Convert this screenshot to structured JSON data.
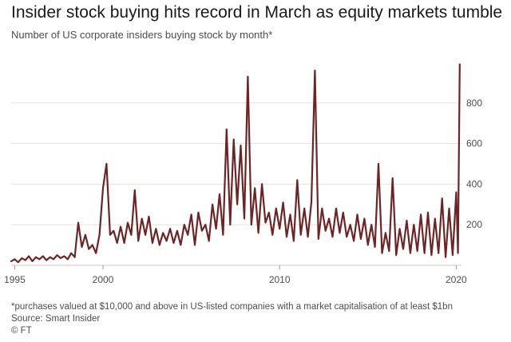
{
  "chart_data": {
    "type": "line",
    "title": "Insider stock buying hits record in March as equity markets tumble",
    "subtitle": "Number of US corporate insiders buying stock by month*",
    "xlabel": "",
    "ylabel": "",
    "xlim": [
      1994.8,
      2020.3
    ],
    "ylim": [
      0,
      1000
    ],
    "x_ticks": [
      {
        "value": 1995,
        "label": "1995"
      },
      {
        "value": 2000,
        "label": "2000"
      },
      {
        "value": 2010,
        "label": "2010"
      },
      {
        "value": 2020,
        "label": "2020"
      }
    ],
    "y_ticks": [
      {
        "value": 200,
        "label": "200"
      },
      {
        "value": 400,
        "label": "400"
      },
      {
        "value": 600,
        "label": "600"
      },
      {
        "value": 800,
        "label": "800"
      }
    ],
    "grid": "horizontal",
    "series": [
      {
        "name": "Insiders buying stock",
        "color": "#6e2424",
        "x": [
          1994.8,
          1995.0,
          1995.2,
          1995.4,
          1995.6,
          1995.8,
          1996.0,
          1996.2,
          1996.4,
          1996.6,
          1996.8,
          1997.0,
          1997.2,
          1997.4,
          1997.6,
          1997.8,
          1998.0,
          1998.2,
          1998.4,
          1998.6,
          1998.8,
          1999.0,
          1999.2,
          1999.4,
          1999.6,
          1999.8,
          2000.0,
          2000.2,
          2000.4,
          2000.6,
          2000.8,
          2001.0,
          2001.2,
          2001.4,
          2001.6,
          2001.8,
          2002.0,
          2002.2,
          2002.4,
          2002.6,
          2002.8,
          2003.0,
          2003.2,
          2003.4,
          2003.6,
          2003.8,
          2004.0,
          2004.2,
          2004.4,
          2004.6,
          2004.8,
          2005.0,
          2005.2,
          2005.4,
          2005.6,
          2005.8,
          2006.0,
          2006.2,
          2006.4,
          2006.6,
          2006.8,
          2007.0,
          2007.2,
          2007.4,
          2007.6,
          2007.8,
          2008.0,
          2008.2,
          2008.4,
          2008.6,
          2008.8,
          2009.0,
          2009.2,
          2009.4,
          2009.6,
          2009.8,
          2010.0,
          2010.2,
          2010.4,
          2010.6,
          2010.8,
          2011.0,
          2011.2,
          2011.4,
          2011.6,
          2011.8,
          2012.0,
          2012.2,
          2012.4,
          2012.6,
          2012.8,
          2013.0,
          2013.2,
          2013.4,
          2013.6,
          2013.8,
          2014.0,
          2014.2,
          2014.4,
          2014.6,
          2014.8,
          2015.0,
          2015.2,
          2015.4,
          2015.6,
          2015.8,
          2016.0,
          2016.2,
          2016.4,
          2016.6,
          2016.8,
          2017.0,
          2017.2,
          2017.4,
          2017.6,
          2017.8,
          2018.0,
          2018.2,
          2018.4,
          2018.6,
          2018.8,
          2019.0,
          2019.2,
          2019.4,
          2019.6,
          2019.8,
          2020.0,
          2020.1,
          2020.2
        ],
        "values": [
          20,
          30,
          15,
          35,
          25,
          45,
          20,
          40,
          30,
          45,
          25,
          40,
          30,
          50,
          35,
          45,
          30,
          60,
          40,
          210,
          90,
          150,
          80,
          100,
          60,
          150,
          380,
          500,
          150,
          170,
          110,
          190,
          110,
          210,
          150,
          370,
          120,
          230,
          150,
          240,
          110,
          180,
          100,
          160,
          120,
          180,
          110,
          170,
          100,
          200,
          150,
          250,
          100,
          260,
          170,
          200,
          120,
          300,
          180,
          350,
          150,
          670,
          200,
          620,
          300,
          590,
          230,
          930,
          200,
          380,
          160,
          400,
          210,
          260,
          150,
          280,
          180,
          310,
          140,
          250,
          120,
          420,
          150,
          280,
          140,
          310,
          960,
          130,
          280,
          170,
          230,
          140,
          280,
          160,
          260,
          140,
          200,
          120,
          250,
          130,
          230,
          100,
          200,
          90,
          500,
          60,
          160,
          70,
          430,
          50,
          180,
          80,
          220,
          60,
          200,
          70,
          250,
          60,
          260,
          50,
          230,
          60,
          330,
          40,
          280,
          50,
          360,
          60,
          990
        ]
      }
    ]
  },
  "footnote": "*purchases valued at $10,000 and above in US-listed companies with a market capitalisation of at least $1bn",
  "source": "Source: Smart Insider",
  "credit": "© FT"
}
